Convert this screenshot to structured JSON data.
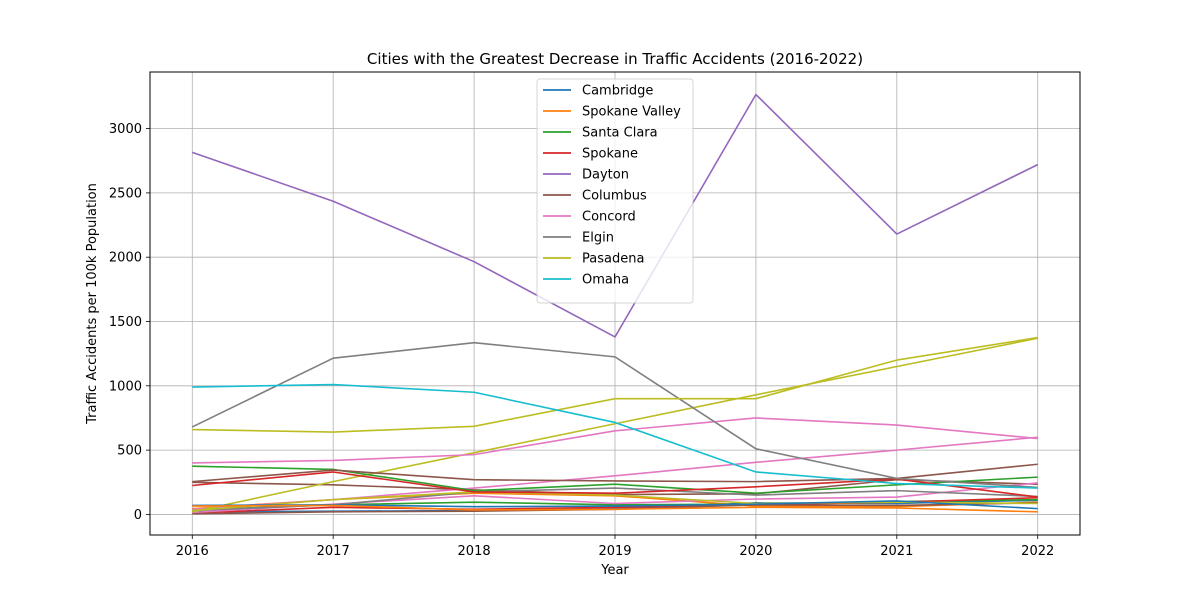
{
  "chart_data": {
    "type": "line",
    "title": "Cities with the Greatest Decrease in Traffic Accidents (2016-2022)",
    "xlabel": "Year",
    "ylabel": "Traffic Accidents per 100k Population",
    "x": [
      2016,
      2017,
      2018,
      2019,
      2020,
      2021,
      2022
    ],
    "xlim": [
      2015.7,
      2022.3
    ],
    "ylim": [
      -160,
      3440
    ],
    "yticks": [
      0,
      500,
      1000,
      1500,
      2000,
      2500,
      3000
    ],
    "grid": true,
    "legend_position": "upper center",
    "series": [
      {
        "name": "Cambridge",
        "color": "#1f77b4",
        "values": [
          70,
          75,
          60,
          65,
          80,
          105,
          45
        ]
      },
      {
        "name": "Spokane Valley",
        "color": "#ff7f0e",
        "values": [
          65,
          70,
          35,
          40,
          55,
          50,
          20
        ]
      },
      {
        "name": "Santa Clara",
        "color": "#2ca02c",
        "values": [
          375,
          350,
          185,
          235,
          165,
          230,
          290
        ]
      },
      {
        "name": "Spokane",
        "color": "#d62728",
        "values": [
          225,
          330,
          175,
          165,
          215,
          275,
          135
        ]
      },
      {
        "name": "Dayton",
        "color": "#9467bd",
        "values": [
          2815,
          2435,
          1965,
          1380,
          3265,
          2180,
          2720
        ]
      },
      {
        "name": "Columbus",
        "color": "#8c564b",
        "values": [
          255,
          345,
          270,
          260,
          255,
          280,
          390
        ]
      },
      {
        "name": "Concord",
        "color": "#e377c2",
        "values": [
          400,
          420,
          465,
          650,
          750,
          695,
          590
        ]
      },
      {
        "name": "Elgin",
        "color": "#7f7f7f",
        "values": [
          680,
          1215,
          1335,
          1225,
          510,
          280,
          210
        ]
      },
      {
        "name": "Pasadena",
        "color": "#bcbd22",
        "values": [
          660,
          640,
          685,
          900,
          900,
          1200,
          1375
        ]
      },
      {
        "name": "Omaha",
        "color": "#17becf",
        "values": [
          990,
          1010,
          950,
          715,
          330,
          240,
          205
        ]
      }
    ],
    "extra_series": [
      {
        "color": "#1f77b4",
        "values": [
          20,
          25,
          30,
          45,
          90,
          85,
          110
        ]
      },
      {
        "color": "#ff7f0e",
        "values": [
          45,
          115,
          165,
          145,
          65,
          60,
          95
        ]
      },
      {
        "color": "#2ca02c",
        "values": [
          35,
          75,
          95,
          75,
          80,
          100,
          115
        ]
      },
      {
        "color": "#d62728",
        "values": [
          10,
          55,
          40,
          55,
          75,
          95,
          130
        ]
      },
      {
        "color": "#8c564b",
        "values": [
          250,
          230,
          190,
          155,
          160,
          270,
          235
        ]
      },
      {
        "color": "#8c564b",
        "values": [
          5,
          20,
          25,
          40,
          75,
          70,
          90
        ]
      },
      {
        "color": "#e377c2",
        "values": [
          15,
          80,
          145,
          85,
          120,
          135,
          245
        ]
      },
      {
        "color": "#e377c2",
        "values": [
          40,
          115,
          205,
          300,
          405,
          500,
          600
        ]
      },
      {
        "color": "#7f7f7f",
        "values": [
          30,
          75,
          175,
          205,
          150,
          185,
          140
        ]
      },
      {
        "color": "#bcbd22",
        "values": [
          20,
          255,
          480,
          705,
          930,
          1150,
          1370
        ]
      },
      {
        "color": "#bcbd22",
        "values": [
          30,
          115,
          175,
          150,
          85,
          95,
          85
        ]
      }
    ]
  }
}
